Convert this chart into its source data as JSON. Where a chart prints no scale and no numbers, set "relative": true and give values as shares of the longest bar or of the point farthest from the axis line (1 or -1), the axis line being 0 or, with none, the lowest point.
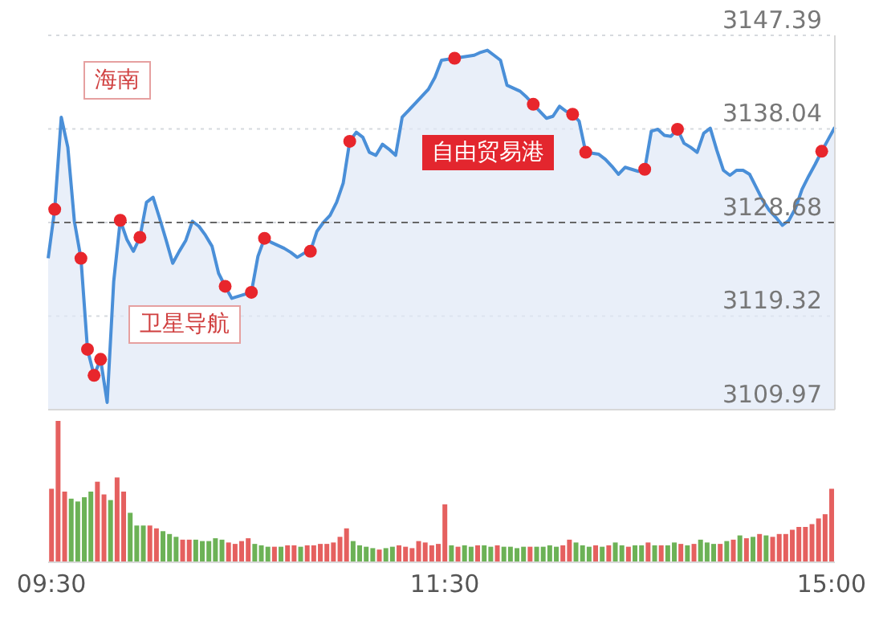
{
  "chart_data": [
    {
      "type": "area",
      "categories": [
        null,
        null,
        null,
        null,
        null,
        null,
        null,
        null,
        null,
        null,
        null,
        null,
        null,
        null,
        null,
        null,
        null,
        null,
        null,
        null,
        null,
        null,
        null,
        null,
        null,
        null,
        null,
        null,
        null,
        null,
        null,
        null,
        null,
        null,
        null,
        null,
        null,
        null,
        null,
        null,
        null,
        null,
        null,
        null,
        null,
        null,
        null,
        null,
        null,
        null,
        null,
        null,
        null,
        null,
        null,
        null,
        null,
        null,
        null,
        null,
        null,
        null,
        null,
        null,
        null,
        null,
        null,
        null,
        null,
        null,
        null,
        null,
        null,
        null,
        null,
        null,
        null,
        null,
        null,
        null,
        null,
        null,
        null,
        null,
        null,
        null,
        null,
        null,
        null,
        null,
        null,
        null,
        null,
        null,
        null,
        null,
        null,
        null,
        null,
        null,
        null,
        null,
        null,
        null,
        null,
        null,
        null,
        null,
        null,
        null,
        null,
        null,
        null,
        null,
        null,
        null,
        null,
        null,
        null,
        null,
        null
      ],
      "ylim": [
        3109.97,
        3147.39
      ],
      "yticks": [
        3109.97,
        3119.32,
        3128.68,
        3138.04,
        3147.39
      ],
      "tick_labels": "y",
      "grid": "y",
      "legend": false,
      "ref_lines": [
        {
          "axis": "y",
          "value": 3128.68,
          "color": "#666666",
          "line_style": "dashed"
        }
      ],
      "annotations": [
        "海南",
        "卫星导航",
        "自由贸易港"
      ],
      "series": [
        {
          "type": "area",
          "color": "#4a8fd8",
          "values": [
            3125.1,
            3130.0,
            3139.2,
            3136.2,
            3128.8,
            3125.1,
            3116.0,
            3113.4,
            3115.0,
            3110.7,
            3122.8,
            3128.9,
            3127.0,
            3125.8,
            3127.2,
            3130.7,
            3131.2,
            3129.1,
            3126.9,
            3124.6,
            3125.8,
            3126.9,
            3128.8,
            3128.3,
            3127.4,
            3126.3,
            3123.6,
            3122.3,
            3121.1,
            3121.3,
            3121.5,
            3121.7,
            3125.3,
            3127.1,
            3126.7,
            3126.4,
            3126.1,
            3125.7,
            3125.2,
            3125.6,
            3125.8,
            3127.8,
            3128.7,
            3129.4,
            3130.7,
            3132.6,
            3136.8,
            3137.7,
            3137.2,
            3135.7,
            3135.4,
            3136.5,
            3136.0,
            3135.4,
            3139.2,
            3139.9,
            3140.6,
            3141.3,
            3142.0,
            3143.2,
            3144.9,
            3145.0,
            3145.1,
            3145.2,
            3145.3,
            3145.4,
            3145.7,
            3145.9,
            3145.4,
            3144.9,
            3142.4,
            3142.1,
            3141.8,
            3141.2,
            3140.5,
            3139.8,
            3139.1,
            3139.3,
            3140.3,
            3139.8,
            3139.5,
            3138.8,
            3135.7,
            3135.6,
            3135.5,
            3135.0,
            3134.3,
            3133.5,
            3134.2,
            3134.0,
            3133.8,
            3134.0,
            3137.8,
            3138.0,
            3137.4,
            3137.3,
            3138.0,
            3136.6,
            3136.2,
            3135.7,
            3137.6,
            3138.1,
            3135.9,
            3133.9,
            3133.4,
            3133.9,
            3133.9,
            3133.5,
            3132.2,
            3130.9,
            3129.9,
            3129.2,
            3128.4,
            3128.9,
            3130.1,
            3132.0,
            3133.3,
            3134.5,
            3135.8,
            3137.0,
            3138.2
          ]
        },
        {
          "type": "scatter",
          "color": "#e8262c",
          "marker": "circle",
          "values": [
            null,
            3130.0,
            null,
            null,
            null,
            3125.1,
            3116.0,
            3113.4,
            3115.0,
            null,
            null,
            3128.9,
            null,
            null,
            3127.2,
            null,
            null,
            null,
            null,
            null,
            null,
            null,
            null,
            null,
            null,
            null,
            null,
            3122.3,
            null,
            null,
            null,
            3121.7,
            null,
            3127.1,
            null,
            null,
            null,
            null,
            null,
            null,
            3125.8,
            null,
            null,
            null,
            null,
            null,
            3136.8,
            null,
            null,
            null,
            null,
            null,
            null,
            null,
            null,
            null,
            null,
            null,
            null,
            null,
            null,
            null,
            3145.1,
            null,
            null,
            null,
            null,
            null,
            null,
            null,
            null,
            null,
            null,
            null,
            3140.5,
            null,
            null,
            null,
            null,
            null,
            3139.5,
            null,
            3135.7,
            null,
            null,
            null,
            null,
            null,
            null,
            null,
            null,
            3134.0,
            null,
            null,
            null,
            null,
            3138.0,
            null,
            null,
            null,
            null,
            null,
            null,
            null,
            null,
            null,
            null,
            null,
            null,
            null,
            null,
            null,
            null,
            null,
            null,
            null,
            null,
            null,
            3135.8,
            null,
            null
          ]
        }
      ]
    },
    {
      "type": "bar",
      "relative": true,
      "categories": [
        "09:30",
        null,
        null,
        null,
        null,
        null,
        null,
        null,
        null,
        null,
        null,
        null,
        null,
        null,
        null,
        null,
        null,
        null,
        null,
        null,
        null,
        null,
        null,
        null,
        null,
        null,
        null,
        null,
        null,
        null,
        null,
        null,
        null,
        null,
        null,
        null,
        null,
        null,
        null,
        null,
        null,
        null,
        null,
        null,
        null,
        null,
        null,
        null,
        null,
        null,
        null,
        null,
        null,
        null,
        null,
        null,
        null,
        null,
        null,
        null,
        "11:30",
        null,
        null,
        null,
        null,
        null,
        null,
        null,
        null,
        null,
        null,
        null,
        null,
        null,
        null,
        null,
        null,
        null,
        null,
        null,
        null,
        null,
        null,
        null,
        null,
        null,
        null,
        null,
        null,
        null,
        null,
        null,
        null,
        null,
        null,
        null,
        null,
        null,
        null,
        null,
        null,
        null,
        null,
        null,
        null,
        null,
        null,
        null,
        null,
        null,
        null,
        null,
        null,
        null,
        null,
        null,
        null,
        null,
        null,
        "15:00"
      ],
      "tick_labels": "x",
      "legend": false,
      "values": [
        0.52,
        1.0,
        0.5,
        0.45,
        0.43,
        0.46,
        0.5,
        0.57,
        0.48,
        0.44,
        0.6,
        0.5,
        0.35,
        0.26,
        0.26,
        0.26,
        0.24,
        0.22,
        0.2,
        0.18,
        0.16,
        0.16,
        0.16,
        0.15,
        0.15,
        0.17,
        0.16,
        0.14,
        0.13,
        0.15,
        0.17,
        0.13,
        0.12,
        0.11,
        0.11,
        0.11,
        0.12,
        0.12,
        0.11,
        0.12,
        0.12,
        0.13,
        0.13,
        0.14,
        0.18,
        0.24,
        0.15,
        0.12,
        0.11,
        0.1,
        0.09,
        0.1,
        0.11,
        0.12,
        0.11,
        0.1,
        0.15,
        0.14,
        0.12,
        0.13,
        0.41,
        0.12,
        0.11,
        0.12,
        0.11,
        0.12,
        0.12,
        0.11,
        0.12,
        0.11,
        0.11,
        0.1,
        0.11,
        0.11,
        0.11,
        0.11,
        0.12,
        0.11,
        0.12,
        0.16,
        0.14,
        0.12,
        0.11,
        0.12,
        0.11,
        0.12,
        0.14,
        0.12,
        0.11,
        0.12,
        0.12,
        0.14,
        0.12,
        0.12,
        0.12,
        0.14,
        0.13,
        0.12,
        0.13,
        0.16,
        0.14,
        0.13,
        0.13,
        0.15,
        0.16,
        0.19,
        0.17,
        0.18,
        0.2,
        0.19,
        0.18,
        0.2,
        0.2,
        0.23,
        0.25,
        0.25,
        0.27,
        0.31,
        0.34,
        0.52
      ],
      "colors": [
        "#e5605f",
        "#e5605f",
        "#e5605f",
        "#6cb256",
        "#6cb256",
        "#6cb256",
        "#6cb256",
        "#e5605f",
        "#e5605f",
        "#6cb256",
        "#e5605f",
        "#e5605f",
        "#6cb256",
        "#6cb256",
        "#6cb256",
        "#e5605f",
        "#e5605f",
        "#6cb256",
        "#6cb256",
        "#6cb256",
        "#e5605f",
        "#e5605f",
        "#6cb256",
        "#6cb256",
        "#6cb256",
        "#6cb256",
        "#6cb256",
        "#e5605f",
        "#e5605f",
        "#e5605f",
        "#e5605f",
        "#6cb256",
        "#6cb256",
        "#6cb256",
        "#e5605f",
        "#6cb256",
        "#e5605f",
        "#e5605f",
        "#6cb256",
        "#e5605f",
        "#e5605f",
        "#e5605f",
        "#e5605f",
        "#e5605f",
        "#e5605f",
        "#e5605f",
        "#6cb256",
        "#6cb256",
        "#6cb256",
        "#6cb256",
        "#e5605f",
        "#6cb256",
        "#6cb256",
        "#e5605f",
        "#e5605f",
        "#e5605f",
        "#e5605f",
        "#e5605f",
        "#e5605f",
        "#e5605f",
        "#e5605f",
        "#6cb256",
        "#e5605f",
        "#6cb256",
        "#6cb256",
        "#e5605f",
        "#6cb256",
        "#6cb256",
        "#e5605f",
        "#6cb256",
        "#6cb256",
        "#6cb256",
        "#6cb256",
        "#e5605f",
        "#6cb256",
        "#6cb256",
        "#6cb256",
        "#6cb256",
        "#e5605f",
        "#e5605f",
        "#6cb256",
        "#6cb256",
        "#6cb256",
        "#e5605f",
        "#6cb256",
        "#e5605f",
        "#6cb256",
        "#6cb256",
        "#e5605f",
        "#6cb256",
        "#6cb256",
        "#e5605f",
        "#6cb256",
        "#e5605f",
        "#6cb256",
        "#6cb256",
        "#e5605f",
        "#6cb256",
        "#e5605f",
        "#6cb256",
        "#6cb256",
        "#6cb256",
        "#e5605f",
        "#6cb256",
        "#e5605f",
        "#6cb256",
        "#e5605f",
        "#6cb256",
        "#e5605f",
        "#6cb256",
        "#e5605f",
        "#e5605f",
        "#e5605f",
        "#e5605f",
        "#e5605f",
        "#e5605f",
        "#e5605f",
        "#e5605f",
        "#e5605f",
        "#e5605f"
      ]
    }
  ]
}
